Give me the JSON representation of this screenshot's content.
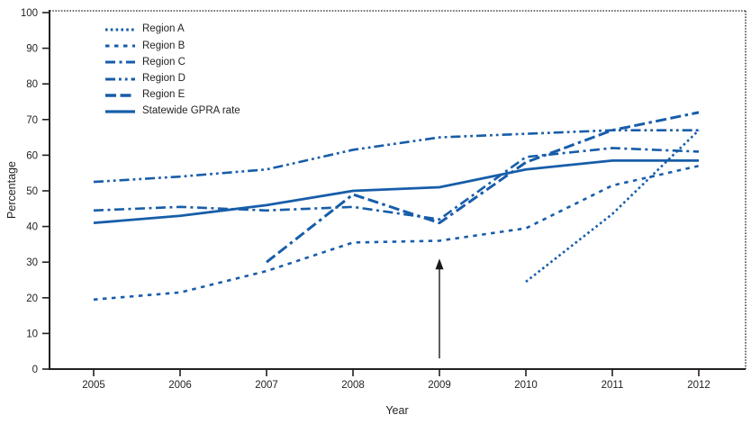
{
  "colors": {
    "line_blue": "#175da9",
    "axis_black": "#231f20",
    "background": "#ffffff"
  },
  "chart_data": {
    "type": "line",
    "title": "",
    "xlabel": "Year",
    "ylabel": "Percentage",
    "x": [
      2005,
      2006,
      2007,
      2008,
      2009,
      2010,
      2011,
      2012
    ],
    "x_tick_labels": [
      "2005",
      "2006",
      "2007",
      "2008",
      "2009",
      "2010",
      "2011",
      "2012"
    ],
    "ylim": [
      0,
      100
    ],
    "y_ticks": [
      0,
      10,
      20,
      30,
      40,
      50,
      60,
      70,
      80,
      90,
      100
    ],
    "grid": false,
    "legend_position": "top-left-inside",
    "series": [
      {
        "name": "Region A",
        "style": "dotted-dense",
        "values": [
          null,
          null,
          null,
          null,
          null,
          24.5,
          43.5,
          67
        ]
      },
      {
        "name": "Region B",
        "style": "dotted-sparse",
        "values": [
          19.5,
          21.5,
          27.5,
          35.5,
          36,
          39.5,
          51.5,
          57
        ]
      },
      {
        "name": "Region C",
        "style": "dash-dot",
        "values": [
          44.5,
          45.5,
          44.5,
          45.5,
          42,
          59.5,
          62,
          61
        ]
      },
      {
        "name": "Region D",
        "style": "dash-dot-dot",
        "values": [
          52.5,
          54,
          56,
          61.5,
          65,
          66,
          67,
          67
        ]
      },
      {
        "name": "Region E",
        "style": "dash-dash-dot",
        "values": [
          null,
          null,
          30,
          49,
          41,
          58,
          67,
          72
        ]
      },
      {
        "name": "Statewide GPRA rate",
        "style": "solid",
        "values": [
          41,
          43,
          46,
          50,
          51,
          56,
          58.5,
          58.5
        ]
      }
    ],
    "annotation": {
      "type": "arrow-up",
      "x": 2009,
      "tip_pct": 31,
      "base_pct": 3
    }
  }
}
